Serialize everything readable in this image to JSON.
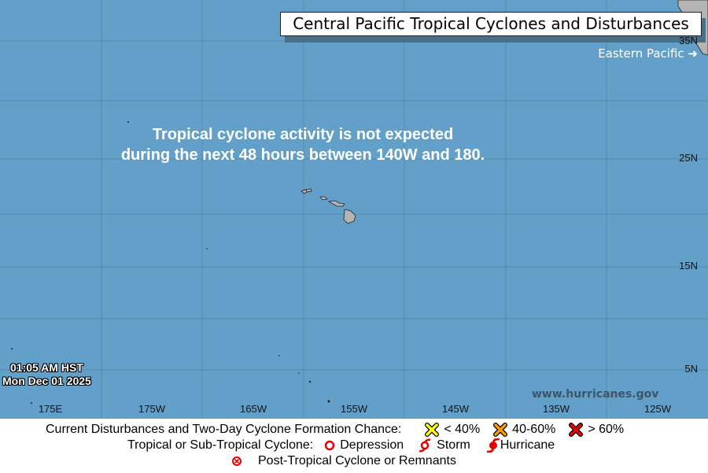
{
  "title": "Central Pacific Tropical Cyclones and Disturbances",
  "eastern_pacific_link": "Eastern Pacific",
  "message_line1": "Tropical cyclone activity is not expected",
  "message_line2": "during the next 48 hours between 140W and 180.",
  "time": "01:05 AM HST",
  "date": "Mon Dec 01 2025",
  "website": "www.hurricanes.gov",
  "lat_labels": [
    "35N",
    "25N",
    "15N",
    "5N"
  ],
  "lon_labels": [
    "175E",
    "175W",
    "165W",
    "155W",
    "145W",
    "135W",
    "125W"
  ],
  "legend": {
    "disturbances_label": "Current Disturbances and Two-Day Cyclone Formation Chance:",
    "low": "< 40%",
    "medium": "40-60%",
    "high": "> 60%",
    "cyclone_label": "Tropical or Sub-Tropical Cyclone:",
    "depression": "Depression",
    "storm": "Storm",
    "hurricane": "Hurricane",
    "post_tropical": "Post-Tropical Cyclone or Remnants"
  },
  "colors": {
    "ocean": "#62a0c9",
    "land": "#b4b4b4",
    "low": "#ffff00",
    "medium": "#ff9900",
    "high": "#e60000",
    "cyclone": "#e60000"
  }
}
